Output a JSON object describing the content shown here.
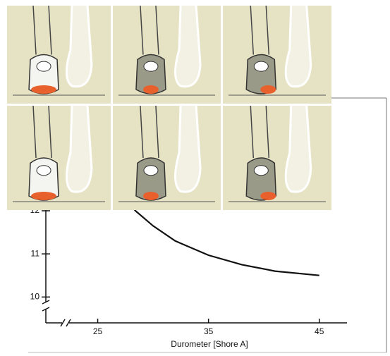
{
  "chart_data": {
    "type": "line",
    "x_label": "Durometer [Shore A]",
    "xlim": [
      20,
      47.5
    ],
    "xticks": [
      25,
      35,
      45
    ],
    "ylim": [
      9.4,
      14.6
    ],
    "yticks": [
      10,
      11,
      12
    ],
    "series": [
      {
        "color": "#111111",
        "x": [
          27.5,
          28.4,
          30,
          32,
          35,
          38,
          41,
          45
        ],
        "values": [
          12.3,
          12.0,
          11.65,
          11.3,
          10.97,
          10.75,
          10.6,
          10.5
        ]
      }
    ]
  }
}
